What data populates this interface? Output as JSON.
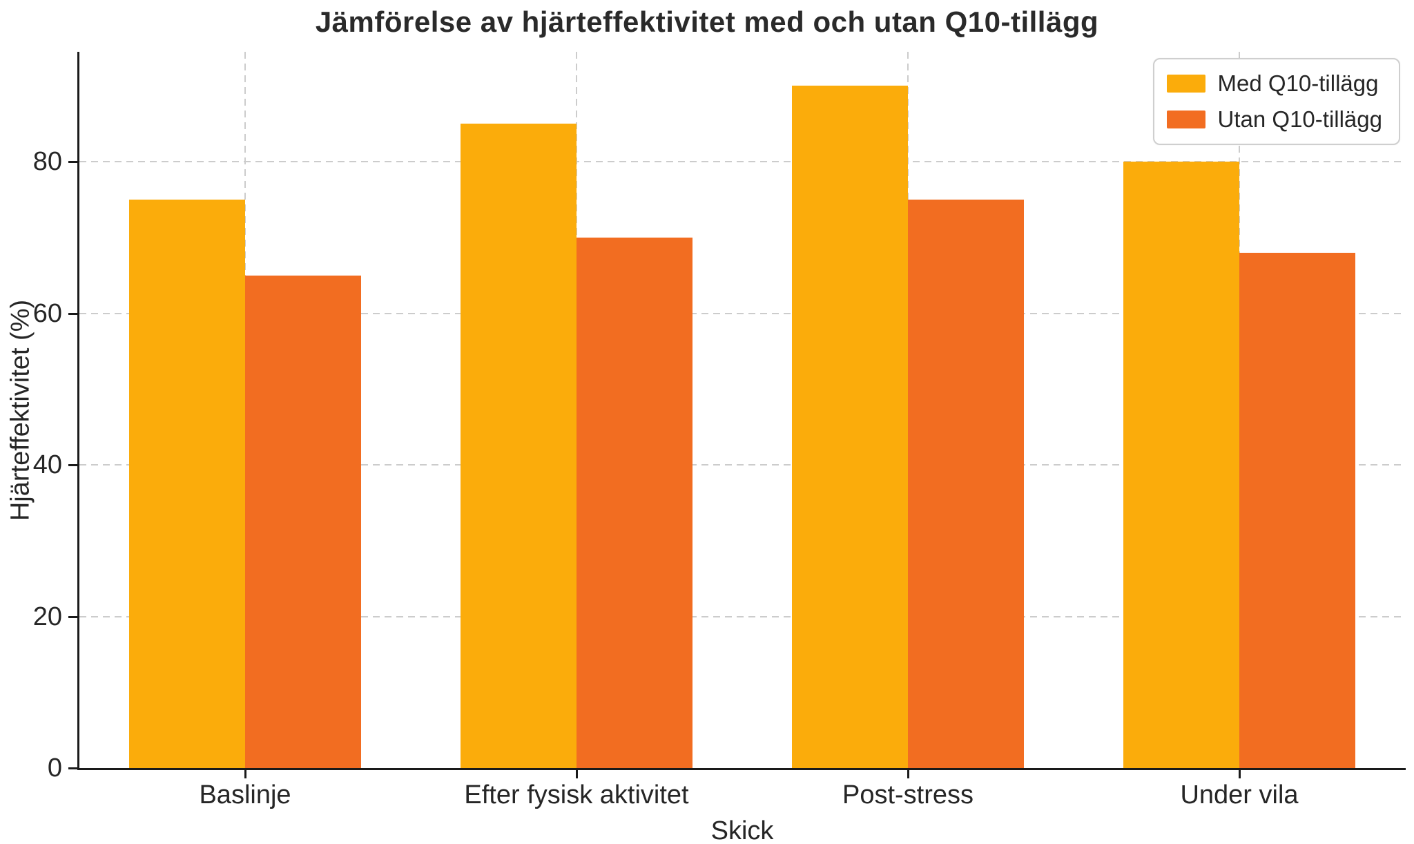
{
  "title": "Jämförelse av hjärteffektivitet med och utan Q10-tillägg",
  "chart_data": {
    "type": "bar",
    "title": "Jämförelse av hjärteffektivitet med och utan Q10-tillägg",
    "categories": [
      "Baslinje",
      "Efter fysisk aktivitet",
      "Post-stress",
      "Under vila"
    ],
    "series": [
      {
        "name": "Med Q10-tillägg",
        "color": "#FBAC0B",
        "values": [
          75,
          85,
          90,
          80
        ]
      },
      {
        "name": "Utan Q10-tillägg",
        "color": "#F26D21",
        "values": [
          65,
          70,
          75,
          68
        ]
      }
    ],
    "xlabel": "Skick",
    "ylabel": "Hjärteffektivitet (%)",
    "ylim": [
      0,
      94.5
    ],
    "yticks": [
      0,
      20,
      40,
      60,
      80
    ],
    "grid": true,
    "grid_axes": "both",
    "legend_position": "upper right",
    "colors": {
      "text": "#262626",
      "spine": "#1a1a1a",
      "grid": "#cccccc",
      "background": "#ffffff"
    }
  }
}
